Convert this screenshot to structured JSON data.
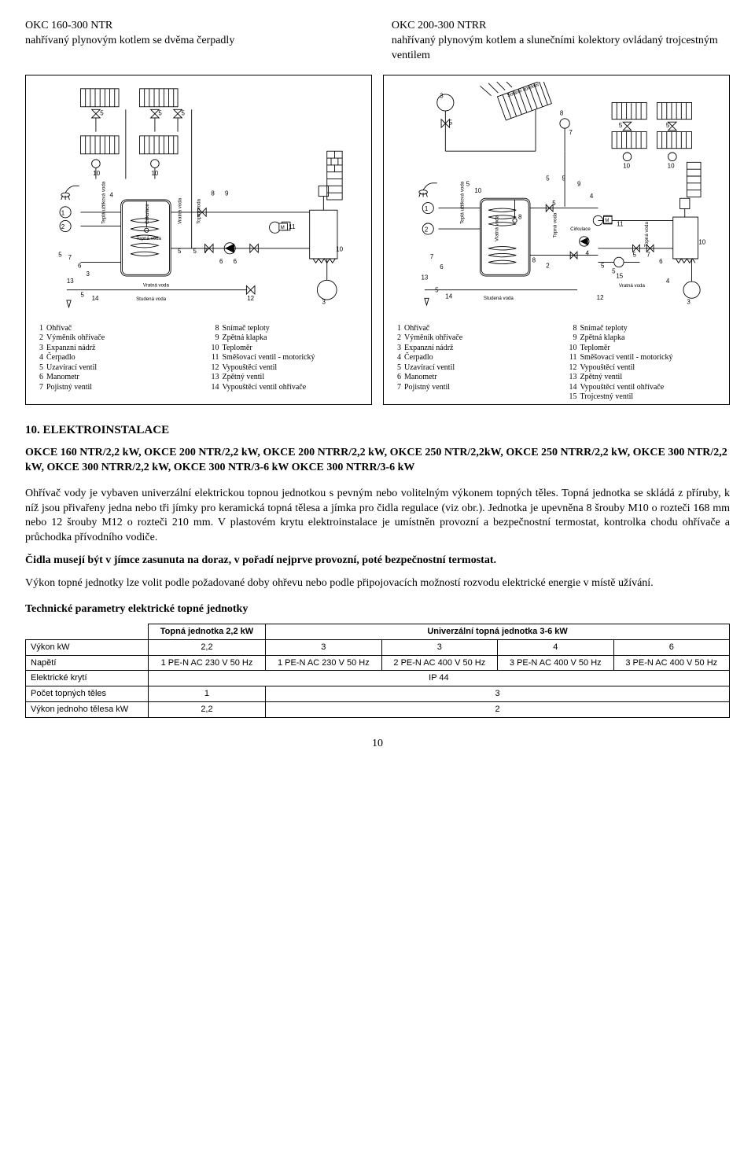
{
  "header": {
    "left": {
      "title": "OKC 160-300 NTR",
      "subtitle": "nahřívaný plynovým kotlem se dvěma čerpadly"
    },
    "right": {
      "title": "OKC 200-300 NTRR",
      "subtitle": "nahřívaný plynovým kotlem a slunečními kolektory ovládaný trojcestným ventilem"
    }
  },
  "diagram_left": {
    "legend": [
      {
        "n": "1",
        "t": "Ohřívač"
      },
      {
        "n": "2",
        "t": "Výměník ohřívače"
      },
      {
        "n": "3",
        "t": "Expanzní nádrž"
      },
      {
        "n": "4",
        "t": "Čerpadlo"
      },
      {
        "n": "5",
        "t": "Uzavírací ventil"
      },
      {
        "n": "6",
        "t": "Manometr"
      },
      {
        "n": "7",
        "t": "Pojistný ventil"
      }
    ],
    "legend2": [
      {
        "n": "8",
        "t": "Snímač teploty"
      },
      {
        "n": "9",
        "t": "Zpětná klapka"
      },
      {
        "n": "10",
        "t": "Teploměr"
      },
      {
        "n": "11",
        "t": "Směšovací ventil - motorický"
      },
      {
        "n": "12",
        "t": "Vypouštěcí ventil"
      },
      {
        "n": "13",
        "t": "Zpětný ventil"
      },
      {
        "n": "14",
        "t": "Vypouštěcí ventil ohřívače"
      }
    ],
    "labels": {
      "tepla": "Teplá užitková voda",
      "cirk": "Cirkulace",
      "vratna": "Vratná voda",
      "topna": "Topná voda",
      "studena": "Studená voda"
    }
  },
  "diagram_right": {
    "legend": [
      {
        "n": "1",
        "t": "Ohřívač"
      },
      {
        "n": "2",
        "t": "Výměník ohřívače"
      },
      {
        "n": "3",
        "t": "Expanzní nádrž"
      },
      {
        "n": "4",
        "t": "Čerpadlo"
      },
      {
        "n": "5",
        "t": "Uzavírací ventil"
      },
      {
        "n": "6",
        "t": "Manometr"
      },
      {
        "n": "7",
        "t": "Pojistný ventil"
      }
    ],
    "legend2": [
      {
        "n": "8",
        "t": "Snímač teploty"
      },
      {
        "n": "9",
        "t": "Zpětná klapka"
      },
      {
        "n": "10",
        "t": "Teploměr"
      },
      {
        "n": "11",
        "t": "Směšovací ventil - motorický"
      },
      {
        "n": "12",
        "t": "Vypouštěcí ventil"
      },
      {
        "n": "13",
        "t": "Zpětný ventil"
      },
      {
        "n": "14",
        "t": "Vypouštěcí ventil ohřívače"
      },
      {
        "n": "15",
        "t": "Trojcestný ventil"
      }
    ],
    "labels": {
      "solar": "Solární kolektor",
      "tepla": "Teplá užitková voda",
      "cirk": "Cirkulace",
      "vratna": "Vratná voda",
      "topna": "Topná voda",
      "studena": "Studená voda"
    }
  },
  "section": {
    "title": "10. ELEKTROINSTALACE",
    "models": "OKCE 160 NTR/2,2 kW, OKCE 200 NTR/2,2 kW, OKCE 200 NTRR/2,2 kW, OKCE 250 NTR/2,2kW, OKCE 250 NTRR/2,2 kW, OKCE 300 NTR/2,2 kW, OKCE 300 NTRR/2,2 kW, OKCE 300 NTR/3-6 kW OKCE 300 NTRR/3-6 kW",
    "p1": "Ohřívač vody je vybaven univerzální elektrickou topnou jednotkou s pevným nebo volitelným výkonem topných těles. Topná jednotka se skládá z příruby, k níž jsou přivařeny jedna nebo tři jímky pro keramická topná tělesa a jímka pro čidla regulace (viz obr.). Jednotka je upevněna 8 šrouby M10 o rozteči 168 mm nebo 12 šrouby M12 o rozteči 210 mm. V plastovém krytu elektroinstalace je umístněn provozní a bezpečnostní termostat, kontrolka chodu ohřívače a průchodka přívodního vodiče.",
    "p2": "Čidla musejí být v jímce zasunuta na doraz, v pořadí nejprve provozní, poté bezpečnostní termostat.",
    "p3": "Výkon topné jednotky lze volit podle požadované doby ohřevu nebo podle připojovacích možností rozvodu elektrické energie v místě užívání.",
    "param_title": "Technické parametry elektrické topné jednotky"
  },
  "table": {
    "h_topna": "Topná jednotka 2,2 kW",
    "h_univ": "Univerzální topná jednotka 3-6 kW",
    "r_vykon": "Výkon kW",
    "r_napeti": "Napětí",
    "r_kryti": "Elektrické krytí",
    "r_pocet": "Počet topných těles",
    "r_vyk1": "Výkon jednoho tělesa kW",
    "c": {
      "vykon": [
        "2,2",
        "3",
        "3",
        "4",
        "6"
      ],
      "napeti": [
        "1 PE-N AC 230 V 50 Hz",
        "1 PE-N AC 230 V 50 Hz",
        "2 PE-N AC 400 V 50 Hz",
        "3 PE-N AC 400 V 50 Hz",
        "3 PE-N AC 400 V 50 Hz"
      ],
      "kryti": "IP 44",
      "pocet": [
        "1",
        "3"
      ],
      "vyk1": [
        "2,2",
        "2"
      ]
    }
  },
  "page": "10"
}
